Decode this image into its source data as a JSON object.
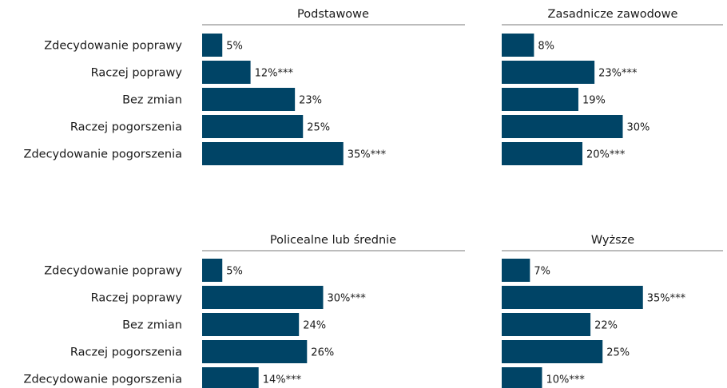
{
  "chart_data": [
    {
      "type": "bar",
      "orientation": "horizontal",
      "title": "Podstawowe",
      "categories": [
        "Zdecydowanie poprawy",
        "Raczej poprawy",
        "Bez zmian",
        "Raczej pogorszenia",
        "Zdecydowanie pogorszenia"
      ],
      "values": [
        5,
        12,
        23,
        25,
        35
      ],
      "value_labels": [
        "5%",
        "12%***",
        "23%",
        "25%",
        "35%***"
      ],
      "color": "#004466"
    },
    {
      "type": "bar",
      "orientation": "horizontal",
      "title": "Zasadnicze zawodowe",
      "categories": [
        "Zdecydowanie poprawy",
        "Raczej poprawy",
        "Bez zmian",
        "Raczej pogorszenia",
        "Zdecydowanie pogorszenia"
      ],
      "values": [
        8,
        23,
        19,
        30,
        20
      ],
      "value_labels": [
        "8%",
        "23%***",
        "19%",
        "30%",
        "20%***"
      ],
      "color": "#004466"
    },
    {
      "type": "bar",
      "orientation": "horizontal",
      "title": "Policealne lub średnie",
      "categories": [
        "Zdecydowanie poprawy",
        "Raczej poprawy",
        "Bez zmian",
        "Raczej pogorszenia",
        "Zdecydowanie pogorszenia"
      ],
      "values": [
        5,
        30,
        24,
        26,
        14
      ],
      "value_labels": [
        "5%",
        "30%***",
        "24%",
        "26%",
        "14%***"
      ],
      "color": "#004466"
    },
    {
      "type": "bar",
      "orientation": "horizontal",
      "title": "Wyższe",
      "categories": [
        "Zdecydowanie poprawy",
        "Raczej poprawy",
        "Bez zmian",
        "Raczej pogorszenia",
        "Zdecydowanie pogorszenia"
      ],
      "values": [
        7,
        35,
        22,
        25,
        10
      ],
      "value_labels": [
        "7%",
        "35%***",
        "22%",
        "25%",
        "10%***"
      ],
      "color": "#004466"
    }
  ]
}
